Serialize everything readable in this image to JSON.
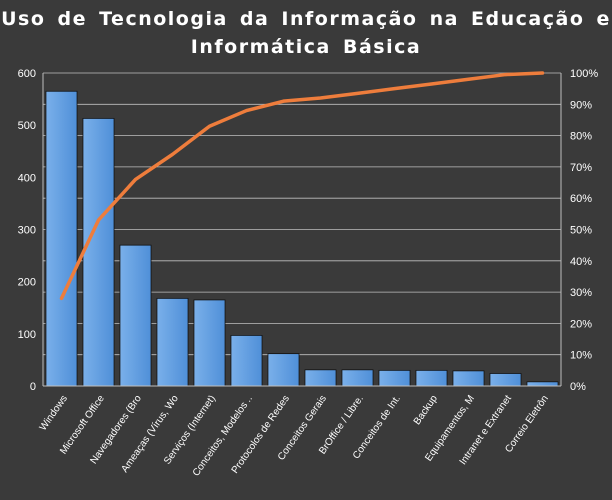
{
  "chart_data": {
    "type": "bar",
    "title_lines": [
      "Uso de Tecnologia  da Informação  na Educação  e",
      "Informática  Básica"
    ],
    "categories": [
      "Windows",
      "Microsoft Office",
      "Navegadores (Bro",
      "Ameaças (Vírus, Wo",
      "Serviços (Internet)",
      "Conceitos, Modelos ..",
      "Protocolos de Redes",
      "Conceitos Gerais",
      "BrOffice / Libre.",
      "Conceitos de Int.",
      "Backup",
      "Equipamentos, M",
      "Intranet e Extranet",
      "Correio Eletrôn"
    ],
    "series": [
      {
        "type": "bar",
        "axis": "left",
        "values": [
          565,
          513,
          270,
          168,
          165,
          97,
          62,
          31,
          31,
          30,
          30,
          29,
          24,
          8
        ]
      },
      {
        "type": "line",
        "axis": "right",
        "values": [
          28,
          53,
          66,
          74,
          83,
          88,
          91,
          92,
          93.5,
          95,
          96.5,
          98,
          99.5,
          100
        ]
      }
    ],
    "y_left": {
      "min": 0,
      "max": 600,
      "ticks": [
        "0",
        "100",
        "200",
        "300",
        "400",
        "500",
        "600"
      ]
    },
    "y_right": {
      "min": 0,
      "max": 100,
      "ticks": [
        "0%",
        "10%",
        "20%",
        "30%",
        "40%",
        "50%",
        "60%",
        "70%",
        "80%",
        "90%",
        "100%"
      ]
    },
    "grid": true,
    "legend": "none",
    "colors": {
      "background": "#3a3a3a",
      "bar": "#4f8fd8",
      "bar_light": "#7ab0ea",
      "bar_edge": "#111111",
      "line": "#ee7d3c",
      "grid": "#bfbfbf",
      "text": "#ffffff"
    }
  }
}
